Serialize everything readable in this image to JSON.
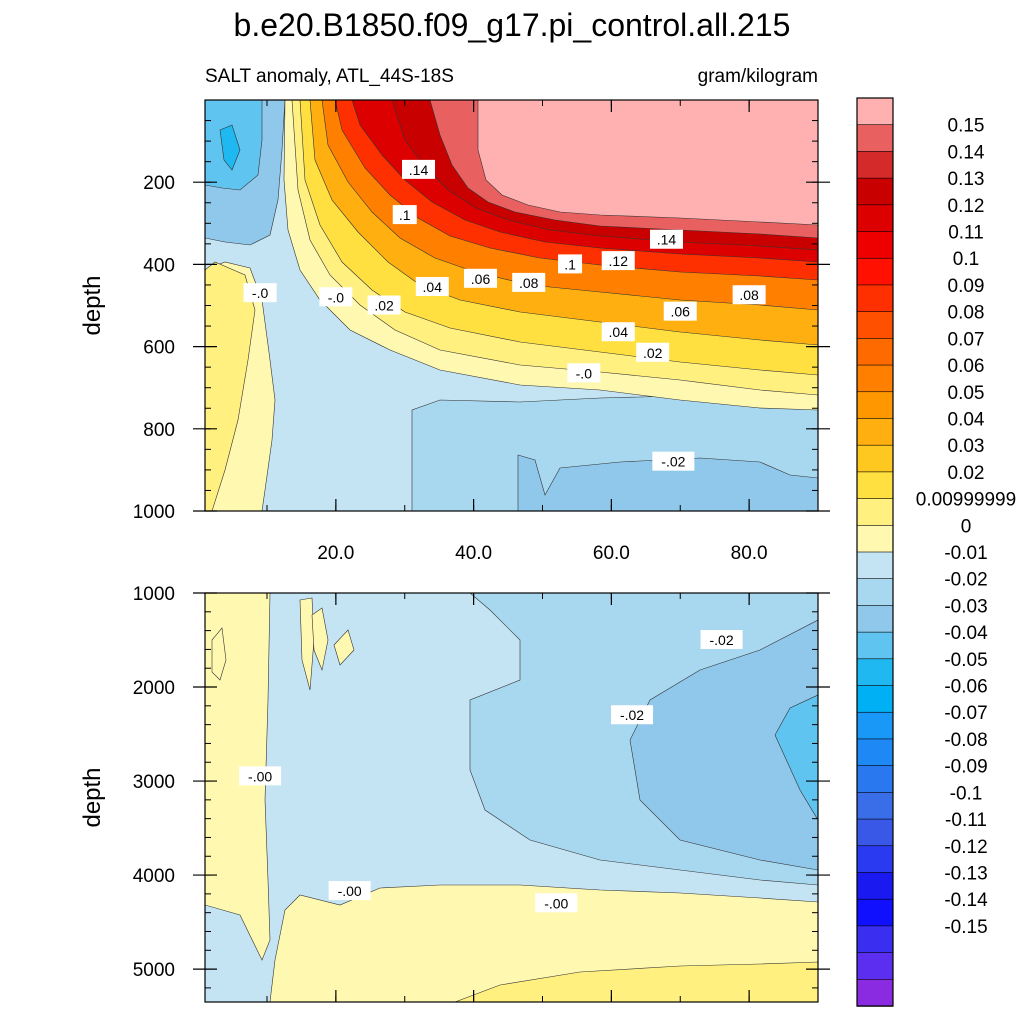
{
  "chart_data": {
    "type": "heatmap",
    "title": "b.e20.B1850.f09_g17.pi_control.all.215",
    "subtitle_left": "SALT anomaly, ATL_44S-18S",
    "subtitle_right": "gram/kilogram",
    "ylabel": "depth",
    "x_ticks": [
      "20.0",
      "40.0",
      "60.0",
      "80.0"
    ],
    "x_tick_values": [
      20,
      40,
      60,
      80
    ],
    "xlim": [
      1,
      90
    ],
    "panels": [
      {
        "name": "upper",
        "ylim": [
          0,
          1000
        ],
        "y_ticks": [
          "200",
          "400",
          "600",
          "800",
          "1000"
        ],
        "y_tick_values": [
          200,
          400,
          600,
          800,
          1000
        ],
        "contour_labels": [
          {
            "text": ".14",
            "x": 32,
            "y": 170
          },
          {
            "text": ".1",
            "x": 30,
            "y": 280
          },
          {
            "text": ".14",
            "x": 68,
            "y": 340
          },
          {
            "text": ".12",
            "x": 61,
            "y": 392
          },
          {
            "text": ".1",
            "x": 54,
            "y": 400
          },
          {
            "text": ".08",
            "x": 48,
            "y": 445
          },
          {
            "text": ".06",
            "x": 41,
            "y": 435
          },
          {
            "text": ".04",
            "x": 34,
            "y": 455
          },
          {
            "text": ".02",
            "x": 27,
            "y": 500
          },
          {
            "text": "-.0",
            "x": 20,
            "y": 480
          },
          {
            "text": "-.0",
            "x": 9,
            "y": 470
          },
          {
            "text": ".08",
            "x": 80,
            "y": 475
          },
          {
            "text": ".06",
            "x": 70,
            "y": 515
          },
          {
            "text": ".04",
            "x": 61,
            "y": 565
          },
          {
            "text": ".02",
            "x": 66,
            "y": 615
          },
          {
            "text": "-.0",
            "x": 56,
            "y": 665
          },
          {
            "text": "-.02",
            "x": 69,
            "y": 880
          }
        ]
      },
      {
        "name": "lower",
        "ylim": [
          1000,
          5350
        ],
        "y_ticks": [
          "1000",
          "2000",
          "3000",
          "4000",
          "5000"
        ],
        "y_tick_values": [
          1000,
          2000,
          3000,
          4000,
          5000
        ],
        "contour_labels": [
          {
            "text": "-.02",
            "x": 76,
            "y": 1500
          },
          {
            "text": "-.02",
            "x": 63,
            "y": 2300
          },
          {
            "text": "-.00",
            "x": 9,
            "y": 2950
          },
          {
            "text": "-.00",
            "x": 22,
            "y": 4170
          },
          {
            "text": "-.00",
            "x": 52,
            "y": 4300
          }
        ]
      }
    ],
    "colorbar": {
      "colors": [
        "#8a2be2",
        "#5b2ef0",
        "#3a2ef0",
        "#1010ff",
        "#1a1af0",
        "#2a3af0",
        "#3a58e8",
        "#3a6ee8",
        "#2a78f0",
        "#1e88f5",
        "#1a98f8",
        "#00b0f5",
        "#20b8f0",
        "#60c4f0",
        "#90c8ec",
        "#a8d8f0",
        "#c4e4f4",
        "#fff8b0",
        "#fff080",
        "#ffe040",
        "#ffc820",
        "#ffb010",
        "#ff9800",
        "#ff8000",
        "#ff6a00",
        "#ff5000",
        "#ff3000",
        "#ff1000",
        "#ee0000",
        "#dd0000",
        "#c80000",
        "#d42a2a",
        "#e86060",
        "#ffb0b0"
      ],
      "labels": [
        "0.15",
        "0.14",
        "0.13",
        "0.12",
        "0.11",
        "0.1",
        "0.09",
        "0.08",
        "0.07",
        "0.06",
        "0.05",
        "0.04",
        "0.03",
        "0.02",
        "0.00999999",
        "0",
        "-0.01",
        "-0.02",
        "-0.03",
        "-0.04",
        "-0.05",
        "-0.06",
        "-0.07",
        "-0.08",
        "-0.09",
        "-0.1",
        "-0.11",
        "-0.12",
        "-0.13",
        "-0.14",
        "-0.15"
      ]
    }
  }
}
